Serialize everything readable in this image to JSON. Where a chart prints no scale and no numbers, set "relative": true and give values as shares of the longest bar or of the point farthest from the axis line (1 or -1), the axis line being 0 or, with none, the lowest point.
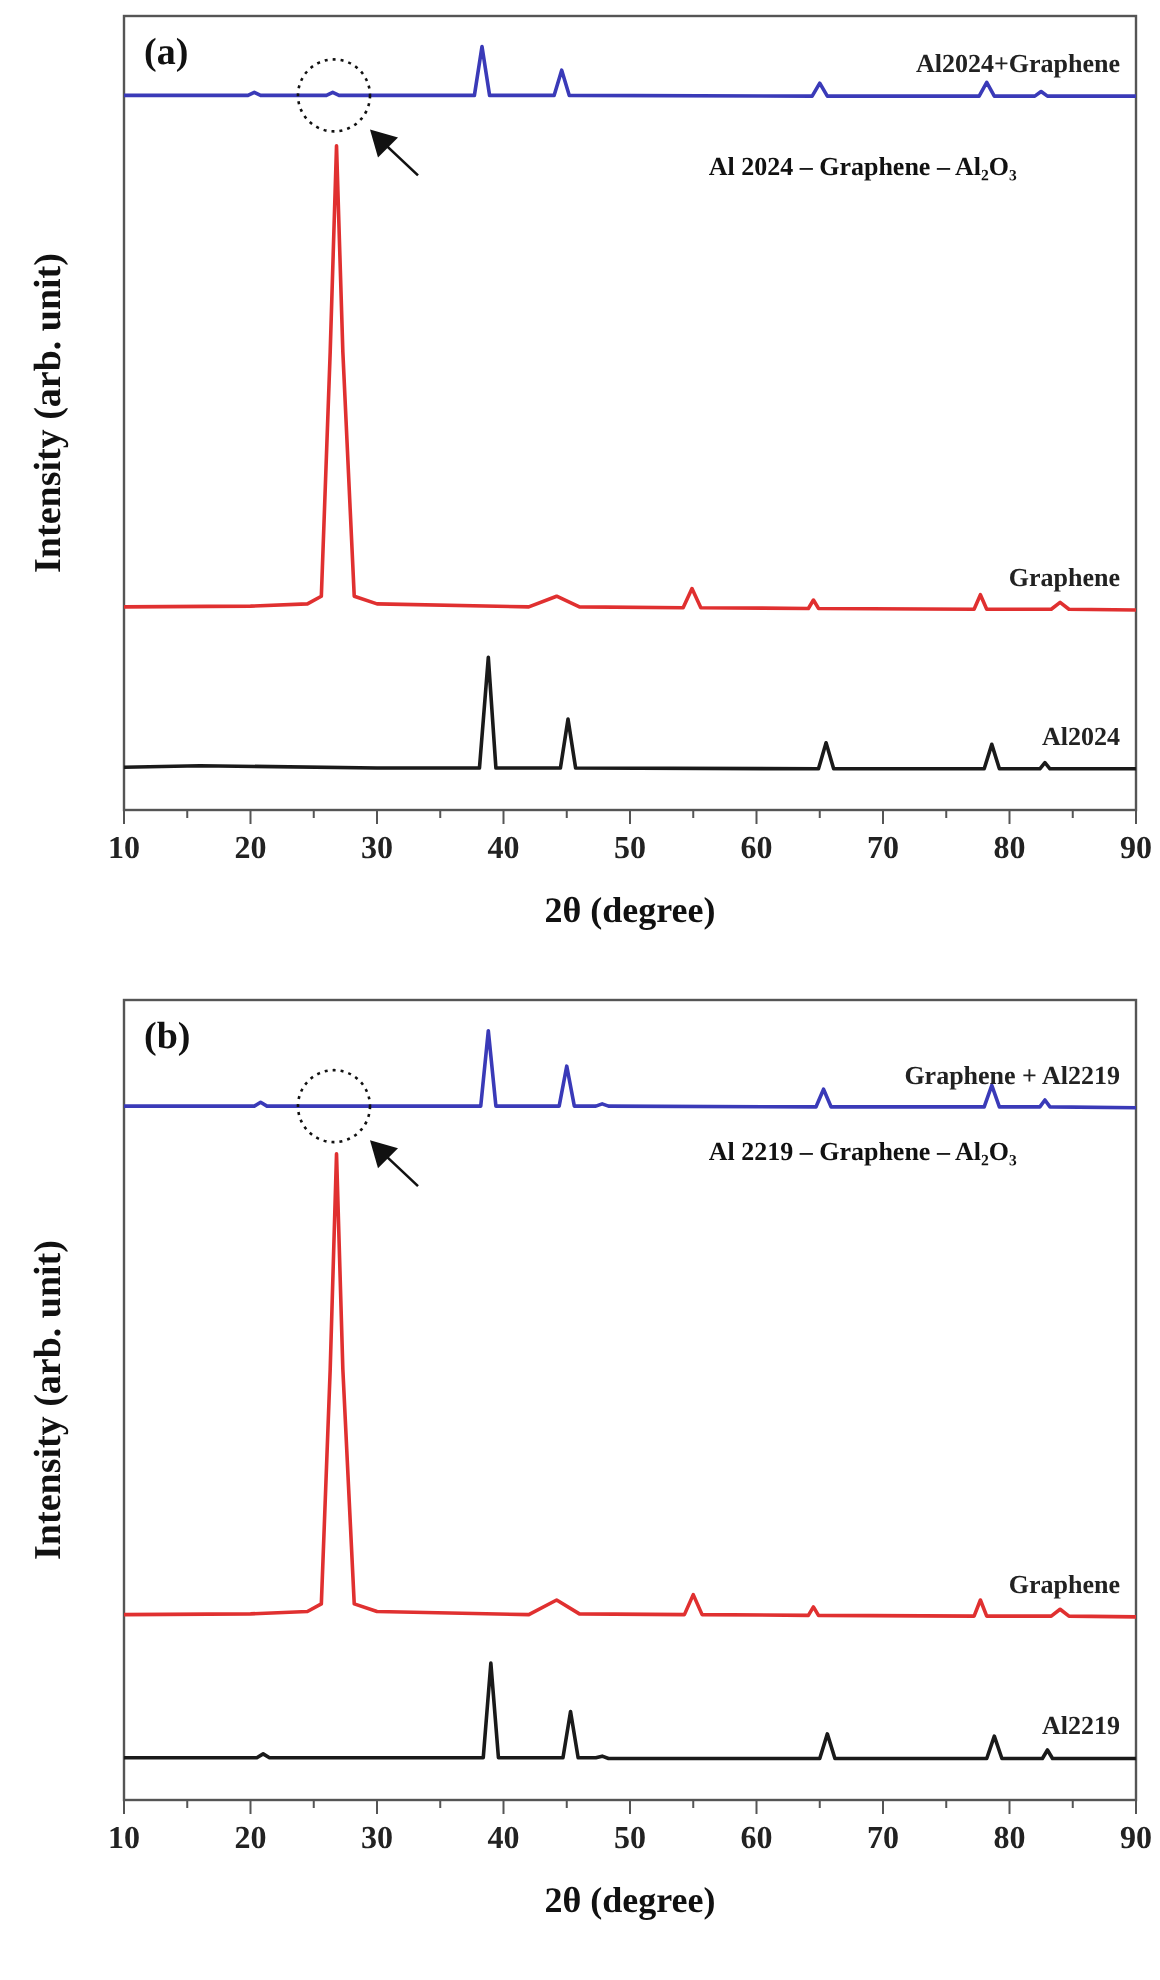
{
  "chart_data": [
    {
      "type": "line",
      "title": "(a)",
      "xlabel": "2θ (degree)",
      "ylabel": "Intensity (arb. unit)",
      "relative": true,
      "annotations": [
        "Al 2024 – Graphene – Al₂O₃"
      ],
      "xlim": [
        10,
        90
      ],
      "xticks": [
        10,
        {
          "value": 15,
          "label": null
        },
        20,
        {
          "value": 25,
          "label": null
        },
        30,
        {
          "value": 35,
          "label": null
        },
        40,
        {
          "value": 45,
          "label": null
        },
        50,
        {
          "value": 55,
          "label": null
        },
        60,
        {
          "value": 65,
          "label": null
        },
        70,
        {
          "value": 75,
          "label": null
        },
        80,
        {
          "value": 85,
          "label": null
        },
        90
      ],
      "grid": false,
      "series": [
        {
          "name": "Al2024",
          "color": "#1a1a1a",
          "x": [
            10,
            16,
            30,
            38.1,
            38.8,
            39.4,
            44.5,
            45.1,
            45.7,
            64.9,
            65.5,
            66.1,
            78,
            78.6,
            79.2,
            82.4,
            82.8,
            83.2,
            90
          ],
          "values": [
            0.056,
            0.058,
            0.055,
            0.055,
            0.2,
            0.055,
            0.055,
            0.119,
            0.055,
            0.054,
            0.088,
            0.054,
            0.054,
            0.086,
            0.054,
            0.054,
            0.062,
            0.054,
            0.054
          ]
        },
        {
          "name": "Graphene",
          "color": "#e03030",
          "x": [
            10,
            20,
            24.5,
            25.6,
            26.3,
            26.8,
            27.3,
            28.2,
            30,
            42,
            44.2,
            46,
            54.2,
            54.9,
            55.6,
            64.1,
            64.5,
            64.9,
            77.2,
            77.7,
            78.2,
            83.3,
            84,
            84.7,
            90
          ],
          "values": [
            0.266,
            0.267,
            0.27,
            0.28,
            0.6,
            0.87,
            0.6,
            0.28,
            0.27,
            0.266,
            0.28,
            0.266,
            0.265,
            0.29,
            0.265,
            0.264,
            0.275,
            0.264,
            0.263,
            0.282,
            0.263,
            0.263,
            0.272,
            0.263,
            0.262
          ]
        },
        {
          "name": "Al2024+Graphene",
          "color": "#3a3ab8",
          "x": [
            10,
            19.8,
            20.3,
            20.8,
            26,
            26.5,
            27,
            37.7,
            38.3,
            38.9,
            44,
            44.6,
            45.2,
            64.4,
            65,
            65.6,
            77.6,
            78.2,
            78.8,
            82,
            82.5,
            83,
            90
          ],
          "values": [
            0.936,
            0.936,
            0.94,
            0.936,
            0.936,
            0.94,
            0.936,
            0.936,
            1,
            0.936,
            0.936,
            0.969,
            0.936,
            0.935,
            0.952,
            0.935,
            0.935,
            0.953,
            0.935,
            0.935,
            0.941,
            0.935,
            0.935
          ]
        }
      ]
    },
    {
      "type": "line",
      "title": "(b)",
      "xlabel": "2θ (degree)",
      "ylabel": "Intensity (arb. unit)",
      "relative": true,
      "annotations": [
        "Al 2219 – Graphene – Al₂O₃"
      ],
      "xlim": [
        10,
        90
      ],
      "xticks": [
        10,
        {
          "value": 15,
          "label": null
        },
        20,
        {
          "value": 25,
          "label": null
        },
        30,
        {
          "value": 35,
          "label": null
        },
        40,
        {
          "value": 45,
          "label": null
        },
        50,
        {
          "value": 55,
          "label": null
        },
        60,
        {
          "value": 65,
          "label": null
        },
        70,
        {
          "value": 75,
          "label": null
        },
        80,
        {
          "value": 85,
          "label": null
        },
        90
      ],
      "grid": false,
      "series": [
        {
          "name": "Al2219",
          "color": "#1a1a1a",
          "x": [
            10,
            20.5,
            21,
            21.5,
            38.4,
            39,
            39.6,
            44.7,
            45.3,
            45.9,
            47.3,
            47.8,
            48.3,
            65,
            65.6,
            66.2,
            78.2,
            78.8,
            79.4,
            82.6,
            83,
            83.4,
            90
          ],
          "values": [
            0.055,
            0.055,
            0.06,
            0.055,
            0.055,
            0.178,
            0.055,
            0.055,
            0.115,
            0.055,
            0.055,
            0.057,
            0.054,
            0.054,
            0.086,
            0.054,
            0.054,
            0.083,
            0.054,
            0.054,
            0.065,
            0.054,
            0.054
          ]
        },
        {
          "name": "Graphene",
          "color": "#e03030",
          "x": [
            10,
            20,
            24.5,
            25.6,
            26.3,
            26.8,
            27.3,
            28.2,
            30,
            42,
            44.2,
            46,
            54.3,
            55,
            55.7,
            64.1,
            64.5,
            64.9,
            77.2,
            77.7,
            78.2,
            83.3,
            84,
            84.7,
            90
          ],
          "values": [
            0.241,
            0.242,
            0.245,
            0.255,
            0.56,
            0.84,
            0.56,
            0.255,
            0.245,
            0.241,
            0.26,
            0.242,
            0.241,
            0.267,
            0.241,
            0.24,
            0.251,
            0.24,
            0.239,
            0.26,
            0.239,
            0.239,
            0.248,
            0.239,
            0.238
          ]
        },
        {
          "name": "Graphene + Al2219",
          "color": "#3a3ab8",
          "x": [
            10,
            20.3,
            20.8,
            21.3,
            38.2,
            38.8,
            39.4,
            44.4,
            45,
            45.6,
            47.3,
            47.8,
            48.3,
            64.7,
            65.3,
            65.9,
            78,
            78.6,
            79.2,
            82.4,
            82.8,
            83.2,
            90
          ],
          "values": [
            0.902,
            0.902,
            0.907,
            0.902,
            0.902,
            1,
            0.902,
            0.902,
            0.954,
            0.902,
            0.902,
            0.905,
            0.902,
            0.901,
            0.924,
            0.901,
            0.901,
            0.929,
            0.901,
            0.901,
            0.91,
            0.901,
            0.9
          ]
        }
      ]
    }
  ]
}
